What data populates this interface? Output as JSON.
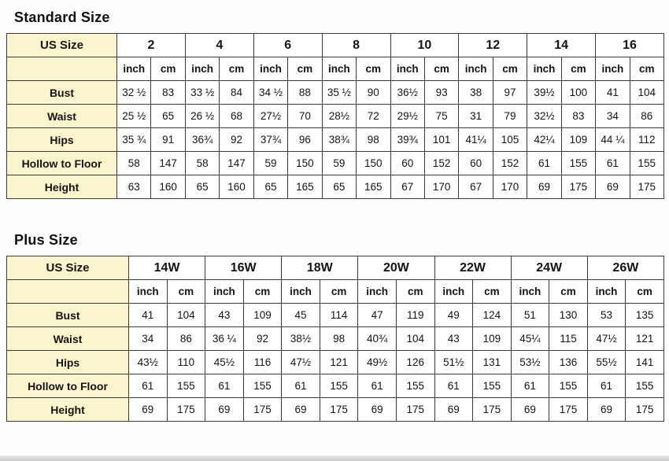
{
  "colors": {
    "label_bg": "#fbf5cd",
    "border": "#3a3a3a",
    "text": "#141414"
  },
  "standard": {
    "title": "Standard Size",
    "corner_label": "US Size",
    "unit_labels": [
      "inch",
      "cm"
    ],
    "sizes": [
      "2",
      "4",
      "6",
      "8",
      "10",
      "12",
      "14",
      "16"
    ],
    "rows": [
      {
        "label": "Bust",
        "values": [
          "32 ½",
          "83",
          "33 ½",
          "84",
          "34 ½",
          "88",
          "35 ½",
          "90",
          "36½",
          "93",
          "38",
          "97",
          "39½",
          "100",
          "41",
          "104"
        ]
      },
      {
        "label": "Waist",
        "values": [
          "25 ½",
          "65",
          "26 ½",
          "68",
          "27½",
          "70",
          "28½",
          "72",
          "29½",
          "75",
          "31",
          "79",
          "32½",
          "83",
          "34",
          "86"
        ]
      },
      {
        "label": "Hips",
        "values": [
          "35 ¾",
          "91",
          "36¾",
          "92",
          "37¾",
          "96",
          "38¾",
          "98",
          "39¾",
          "101",
          "41¼",
          "105",
          "42¼",
          "109",
          "44 ¼",
          "112"
        ]
      },
      {
        "label": "Hollow to Floor",
        "values": [
          "58",
          "147",
          "58",
          "147",
          "59",
          "150",
          "59",
          "150",
          "60",
          "152",
          "60",
          "152",
          "61",
          "155",
          "61",
          "155"
        ]
      },
      {
        "label": "Height",
        "values": [
          "63",
          "160",
          "65",
          "160",
          "65",
          "165",
          "65",
          "165",
          "67",
          "170",
          "67",
          "170",
          "69",
          "175",
          "69",
          "175"
        ]
      }
    ]
  },
  "plus": {
    "title": "Plus Size",
    "corner_label": "US Size",
    "unit_labels": [
      "inch",
      "cm"
    ],
    "sizes": [
      "14W",
      "16W",
      "18W",
      "20W",
      "22W",
      "24W",
      "26W"
    ],
    "rows": [
      {
        "label": "Bust",
        "values": [
          "41",
          "104",
          "43",
          "109",
          "45",
          "114",
          "47",
          "119",
          "49",
          "124",
          "51",
          "130",
          "53",
          "135"
        ]
      },
      {
        "label": "Waist",
        "values": [
          "34",
          "86",
          "36 ¼",
          "92",
          "38½",
          "98",
          "40¾",
          "104",
          "43",
          "109",
          "45¼",
          "115",
          "47½",
          "121"
        ]
      },
      {
        "label": "Hips",
        "values": [
          "43½",
          "110",
          "45½",
          "116",
          "47½",
          "121",
          "49½",
          "126",
          "51½",
          "131",
          "53½",
          "136",
          "55½",
          "141"
        ]
      },
      {
        "label": "Hollow to Floor",
        "values": [
          "61",
          "155",
          "61",
          "155",
          "61",
          "155",
          "61",
          "155",
          "61",
          "155",
          "61",
          "155",
          "61",
          "155"
        ]
      },
      {
        "label": "Height",
        "values": [
          "69",
          "175",
          "69",
          "175",
          "69",
          "175",
          "69",
          "175",
          "69",
          "175",
          "69",
          "175",
          "69",
          "175"
        ]
      }
    ]
  }
}
